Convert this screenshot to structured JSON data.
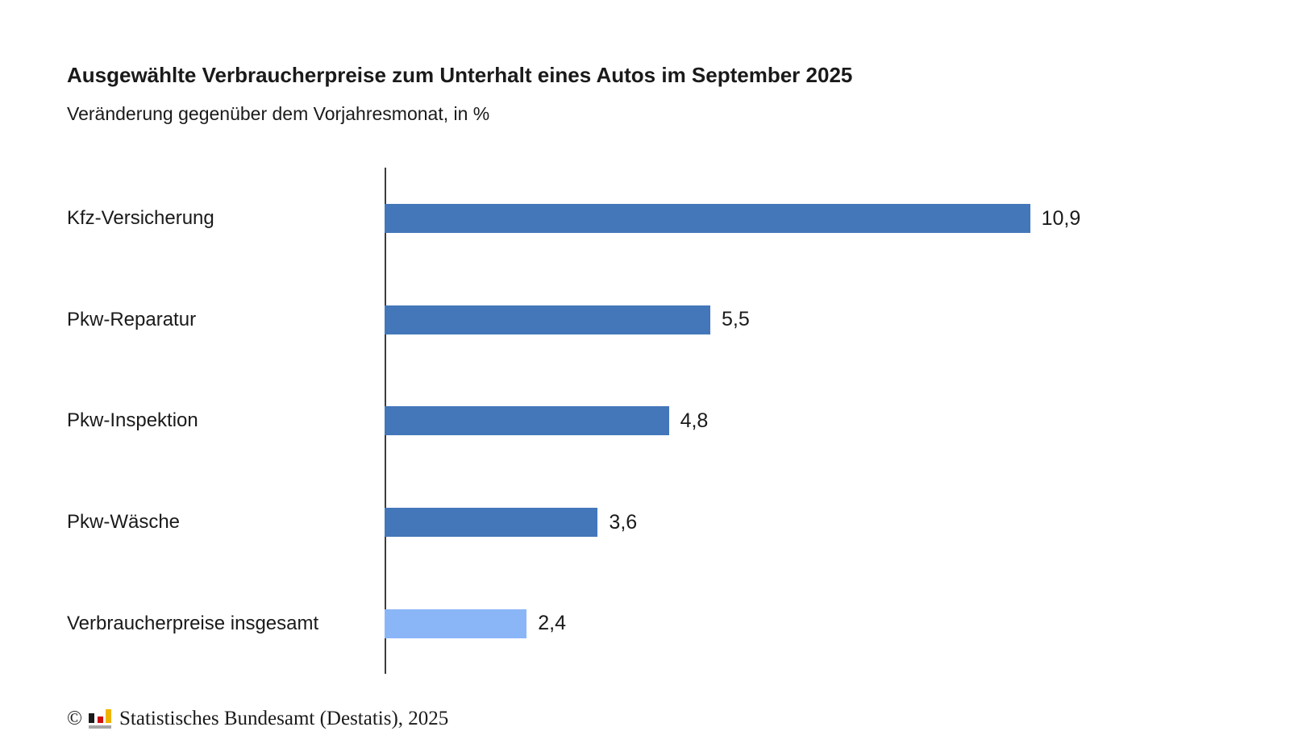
{
  "chart_data": {
    "type": "bar",
    "orientation": "horizontal",
    "title": "Ausgewählte Verbraucherpreise zum Unterhalt eines Autos im September 2025",
    "subtitle": "Veränderung gegenüber dem Vorjahresmonat, in %",
    "categories": [
      "Kfz-Versicherung",
      "Pkw-Reparatur",
      "Pkw-Inspektion",
      "Pkw-Wäsche",
      "Verbraucherpreise insgesamt"
    ],
    "values": [
      10.9,
      5.5,
      4.8,
      3.6,
      2.4
    ],
    "value_labels": [
      "10,9",
      "5,5",
      "4,8",
      "3,6",
      "2,4"
    ],
    "bar_colors": [
      "#4377b9",
      "#4377b9",
      "#4377b9",
      "#4377b9",
      "#8ab6f8"
    ],
    "unit": "%",
    "xlim": [
      0,
      11.3
    ],
    "grid": false,
    "legend": "none",
    "value_label_position": "end-of-bar"
  },
  "footer": {
    "copyright": "©",
    "logo": "destatis-mini-bar-chart",
    "source": "Statistisches Bundesamt (Destatis), 2025"
  },
  "colors": {
    "bar_default": "#4377b9",
    "bar_highlight": "#8ab6f8",
    "axis": "#3c3c3c",
    "text": "#1a1a1a",
    "logo_black": "#1a1a1a",
    "logo_red": "#d00f0f",
    "logo_gold": "#f0b400",
    "logo_gray": "#a6a6a6"
  }
}
